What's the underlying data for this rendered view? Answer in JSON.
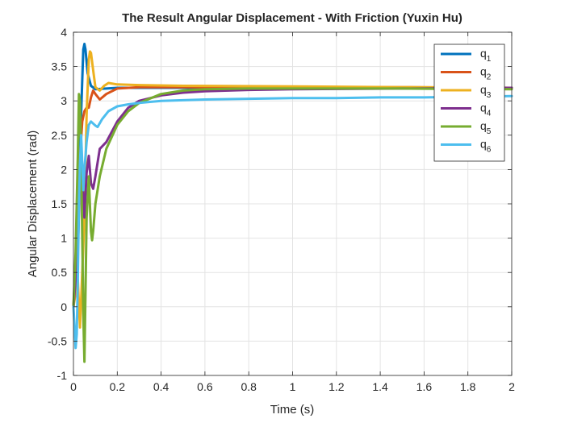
{
  "chart_data": {
    "type": "line",
    "title": "The Result Angular Displacement - With Friction (Yuxin Hu)",
    "xlabel": "Time (s)",
    "ylabel": "Angular Displacement (rad)",
    "xlim": [
      0,
      2
    ],
    "ylim": [
      -1,
      4
    ],
    "xticks": [
      0,
      0.2,
      0.4,
      0.6,
      0.8,
      1,
      1.2,
      1.4,
      1.6,
      1.8,
      2
    ],
    "xtick_labels": [
      "0",
      "0.2",
      "0.4",
      "0.6",
      "0.8",
      "1",
      "1.2",
      "1.4",
      "1.6",
      "1.8",
      "2"
    ],
    "yticks": [
      -1,
      -0.5,
      0,
      0.5,
      1,
      1.5,
      2,
      2.5,
      3,
      3.5,
      4
    ],
    "ytick_labels": [
      "-1",
      "-0.5",
      "0",
      "0.5",
      "1",
      "1.5",
      "2",
      "2.5",
      "3",
      "3.5",
      "4"
    ],
    "grid": true,
    "legend_position": "top-right",
    "series": [
      {
        "name": "q1",
        "label_base": "q",
        "label_sub": "1",
        "color": "#0072BD",
        "points": [
          [
            0,
            0
          ],
          [
            0.01,
            0.3
          ],
          [
            0.02,
            1.2
          ],
          [
            0.03,
            2.3
          ],
          [
            0.04,
            3.3
          ],
          [
            0.045,
            3.75
          ],
          [
            0.05,
            3.83
          ],
          [
            0.055,
            3.75
          ],
          [
            0.065,
            3.4
          ],
          [
            0.08,
            3.22
          ],
          [
            0.1,
            3.17
          ],
          [
            0.15,
            3.18
          ],
          [
            0.2,
            3.19
          ],
          [
            0.3,
            3.19
          ],
          [
            0.5,
            3.19
          ],
          [
            1,
            3.19
          ],
          [
            1.5,
            3.19
          ],
          [
            2,
            3.19
          ]
        ]
      },
      {
        "name": "q2",
        "label_base": "q",
        "label_sub": "2",
        "color": "#D95319",
        "points": [
          [
            0,
            0
          ],
          [
            0.01,
            0.6
          ],
          [
            0.02,
            1.5
          ],
          [
            0.03,
            2.2
          ],
          [
            0.04,
            2.7
          ],
          [
            0.05,
            2.85
          ],
          [
            0.06,
            2.9
          ],
          [
            0.07,
            2.9
          ],
          [
            0.08,
            3.05
          ],
          [
            0.09,
            3.15
          ],
          [
            0.1,
            3.1
          ],
          [
            0.12,
            3.02
          ],
          [
            0.15,
            3.1
          ],
          [
            0.2,
            3.18
          ],
          [
            0.3,
            3.2
          ],
          [
            0.5,
            3.2
          ],
          [
            1,
            3.2
          ],
          [
            1.5,
            3.2
          ],
          [
            2,
            3.19
          ]
        ]
      },
      {
        "name": "q3",
        "label_base": "q",
        "label_sub": "3",
        "color": "#EDB120",
        "points": [
          [
            0,
            0
          ],
          [
            0.02,
            0.4
          ],
          [
            0.03,
            -0.3
          ],
          [
            0.04,
            0.5
          ],
          [
            0.05,
            1.3
          ],
          [
            0.06,
            2.8
          ],
          [
            0.07,
            3.6
          ],
          [
            0.075,
            3.72
          ],
          [
            0.08,
            3.7
          ],
          [
            0.09,
            3.45
          ],
          [
            0.1,
            3.2
          ],
          [
            0.12,
            3.15
          ],
          [
            0.14,
            3.22
          ],
          [
            0.16,
            3.26
          ],
          [
            0.2,
            3.24
          ],
          [
            0.3,
            3.23
          ],
          [
            0.5,
            3.22
          ],
          [
            1,
            3.21
          ],
          [
            1.5,
            3.2
          ],
          [
            2,
            3.19
          ]
        ]
      },
      {
        "name": "q4",
        "label_base": "q",
        "label_sub": "4",
        "color": "#7E2F8E",
        "points": [
          [
            0,
            0
          ],
          [
            0.02,
            0.8
          ],
          [
            0.03,
            1.9
          ],
          [
            0.04,
            1.9
          ],
          [
            0.05,
            1.3
          ],
          [
            0.06,
            1.95
          ],
          [
            0.07,
            2.2
          ],
          [
            0.08,
            1.8
          ],
          [
            0.09,
            1.72
          ],
          [
            0.1,
            1.9
          ],
          [
            0.12,
            2.3
          ],
          [
            0.15,
            2.4
          ],
          [
            0.2,
            2.7
          ],
          [
            0.25,
            2.9
          ],
          [
            0.3,
            3.0
          ],
          [
            0.4,
            3.08
          ],
          [
            0.5,
            3.12
          ],
          [
            0.6,
            3.14
          ],
          [
            0.8,
            3.16
          ],
          [
            1,
            3.17
          ],
          [
            1.5,
            3.18
          ],
          [
            2,
            3.19
          ]
        ]
      },
      {
        "name": "q5",
        "label_base": "q",
        "label_sub": "5",
        "color": "#77AC30",
        "points": [
          [
            0,
            0
          ],
          [
            0.01,
            0.8
          ],
          [
            0.02,
            2.2
          ],
          [
            0.025,
            3.1
          ],
          [
            0.03,
            3.0
          ],
          [
            0.035,
            2.2
          ],
          [
            0.04,
            1.0
          ],
          [
            0.045,
            -0.1
          ],
          [
            0.05,
            -0.8
          ],
          [
            0.055,
            0.2
          ],
          [
            0.06,
            1.3
          ],
          [
            0.07,
            1.9
          ],
          [
            0.08,
            1.1
          ],
          [
            0.085,
            0.97
          ],
          [
            0.09,
            1.1
          ],
          [
            0.1,
            1.5
          ],
          [
            0.12,
            1.9
          ],
          [
            0.15,
            2.3
          ],
          [
            0.2,
            2.65
          ],
          [
            0.25,
            2.85
          ],
          [
            0.3,
            2.97
          ],
          [
            0.4,
            3.1
          ],
          [
            0.5,
            3.15
          ],
          [
            0.6,
            3.17
          ],
          [
            0.8,
            3.18
          ],
          [
            1,
            3.18
          ],
          [
            1.5,
            3.18
          ],
          [
            2,
            3.17
          ]
        ]
      },
      {
        "name": "q6",
        "label_base": "q",
        "label_sub": "6",
        "color": "#4DBEEE",
        "points": [
          [
            0,
            0
          ],
          [
            0.005,
            -0.3
          ],
          [
            0.01,
            -0.6
          ],
          [
            0.015,
            -0.4
          ],
          [
            0.02,
            0.4
          ],
          [
            0.025,
            1.5
          ],
          [
            0.03,
            2.1
          ],
          [
            0.035,
            2.5
          ],
          [
            0.04,
            2.1
          ],
          [
            0.045,
            1.7
          ],
          [
            0.05,
            2.0
          ],
          [
            0.06,
            2.4
          ],
          [
            0.07,
            2.65
          ],
          [
            0.08,
            2.7
          ],
          [
            0.09,
            2.67
          ],
          [
            0.1,
            2.64
          ],
          [
            0.11,
            2.62
          ],
          [
            0.13,
            2.73
          ],
          [
            0.16,
            2.85
          ],
          [
            0.2,
            2.92
          ],
          [
            0.25,
            2.95
          ],
          [
            0.3,
            2.97
          ],
          [
            0.4,
            3.0
          ],
          [
            0.6,
            3.02
          ],
          [
            0.8,
            3.03
          ],
          [
            1,
            3.04
          ],
          [
            1.2,
            3.04
          ],
          [
            1.4,
            3.05
          ],
          [
            1.6,
            3.05
          ],
          [
            1.8,
            3.06
          ],
          [
            2,
            3.07
          ]
        ]
      }
    ]
  }
}
